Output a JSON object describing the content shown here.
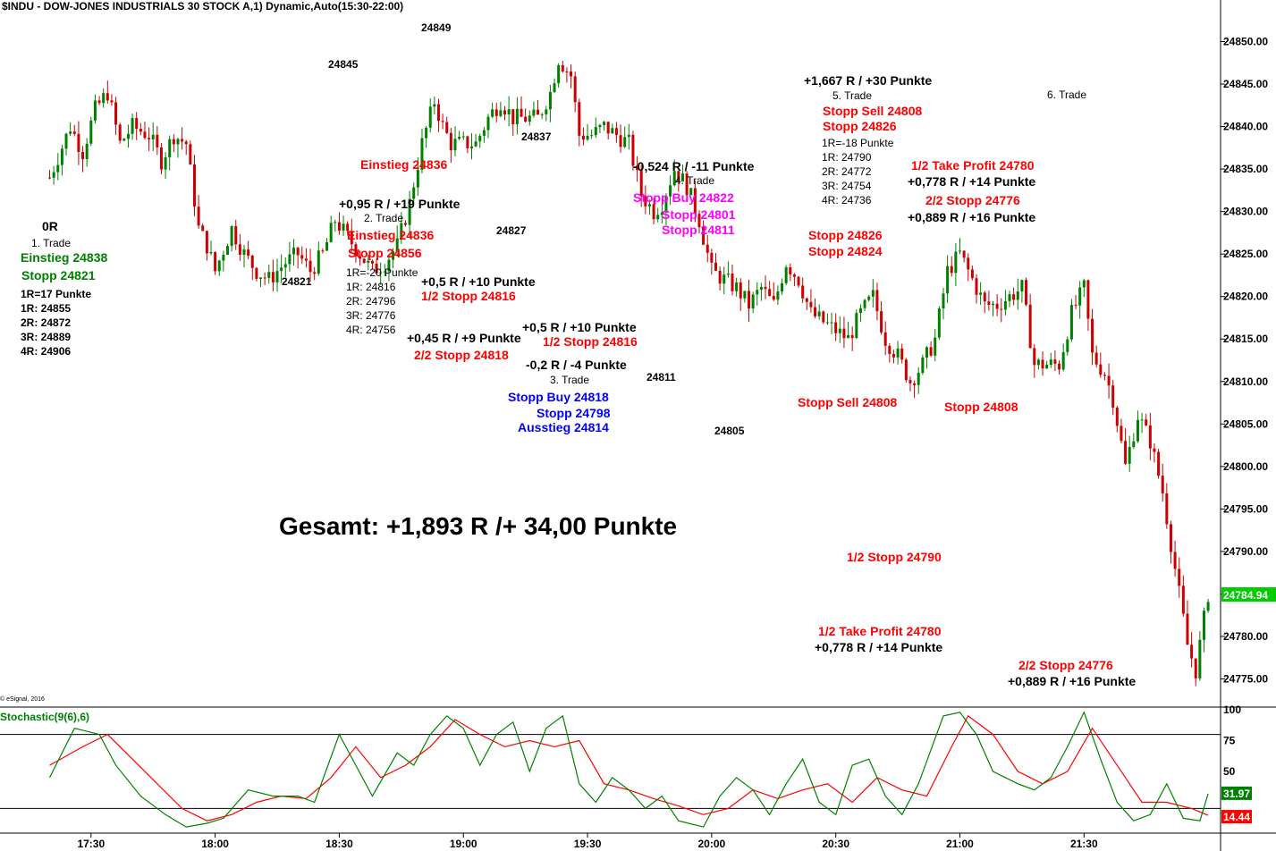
{
  "title": "$INDU - DOW-JONES INDUSTRIALS 30 STOCK A,1) Dynamic,Auto(15:30-22:00)",
  "copyright": "© eSignal, 2016",
  "stochastic_title": "Stochastic(9(6),6)",
  "total": "Gesamt: +1,893 R /+ 34,00 Punkte",
  "colors": {
    "up": "#008000",
    "down": "#cc0000",
    "k_line": "#008000",
    "d_line": "#ff0000",
    "green_ann": "#008000",
    "red_ann": "#ff0000",
    "magenta_ann": "#ff00ff",
    "blue_ann": "#0000ff",
    "last_price_bg": "#00cc00",
    "stoch_k_bg": "#008000",
    "stoch_d_bg": "#ff0000"
  },
  "annotations": {
    "pivot_24849": "24849",
    "pivot_24845": "24845",
    "pivot_24837": "24837",
    "pivot_24827": "24827",
    "pivot_24821": "24821",
    "pivot_24811": "24811",
    "pivot_24805": "24805",
    "t1_r": "0R",
    "t1_name": "1. Trade",
    "t1_entry": "Einstieg 24838",
    "t1_stop": "Stopp 24821",
    "t1_risk": "1R=17 Punkte",
    "t1_1r": "1R: 24855",
    "t1_2r": "2R: 24872",
    "t1_3r": "3R: 24889",
    "t1_4r": "4R: 24906",
    "t2_result": "+0,95 R / +19 Punkte",
    "t2_name": "2. Trade",
    "t2_entry": "Einstieg 24836",
    "t2_stop": "Stopp 24856",
    "t2_risk": "1R=-20 Punkte",
    "t2_1r": "1R: 24816",
    "t2_2r": "2R: 24796",
    "t2_3r": "3R: 24776",
    "t2_4r": "4R: 24756",
    "t2_entry_chart": "Einstieg 24836",
    "t2_half_result": "+0,5 R / +10 Punkte",
    "t2_half_stop": "1/2 Stopp 24816",
    "t2_rest_result": "+0,45 R / +9 Punkte",
    "t2_rest_stop": "2/2 Stopp 24818",
    "t3_half_result": "+0,5 R / +10 Punkte",
    "t3_half_stop": "1/2 Stopp 24816",
    "t3_result": "-0,2 R / -4 Punkte",
    "t3_name": "3. Trade",
    "t3_stop_buy": "Stopp Buy 24818",
    "t3_stop": "Stopp 24798",
    "t3_exit": "Ausstieg 24814",
    "t4_result": "-0,524 R / -11 Punkte",
    "t4_name": "4. Trade",
    "t4_stop_buy": "Stopp Buy 24822",
    "t4_stop1": "Stopp 24801",
    "t4_stop2": "Stopp 24811",
    "t5_result": "+1,667 R / +30 Punkte",
    "t5_name": "5. Trade",
    "t5_stop_sell": "Stopp Sell 24808",
    "t5_stop": "Stopp 24826",
    "t5_risk": "1R=-18 Punkte",
    "t5_1r": "1R: 24790",
    "t5_2r": "2R: 24772",
    "t5_3r": "3R: 24754",
    "t5_4r": "4R: 24736",
    "t6_name": "6. Trade",
    "t6_tp": "1/2 Take Profit 24780",
    "t6_tp_result": "+0,778 R / +14 Punkte",
    "t6_stop": "2/2 Stopp 24776",
    "t6_stop_result": "+0,889 R / +16 Punkte",
    "c_stop_24826": "Stopp 24826",
    "c_stop_24824": "Stopp 24824",
    "c_stop_sell": "Stopp Sell 24808",
    "c_stop_24808": "Stopp 24808",
    "c_half_stop": "1/2 Stopp 24790",
    "c_tp": "1/2 Take Profit 24780",
    "c_tp_result": "+0,778 R / +14 Punkte",
    "c_stop2": "2/2 Stopp 24776",
    "c_stop2_result": "+0,889 R / +16 Punkte"
  },
  "chart_data": [
    {
      "type": "candlestick",
      "title": "$INDU - DOW-JONES INDUSTRIALS 30 STOCK A,1) Dynamic,Auto(15:30-22:00)",
      "x_ticks": [
        "17:30",
        "18:00",
        "18:30",
        "19:00",
        "19:30",
        "20:00",
        "20:30",
        "21:00",
        "21:30"
      ],
      "y_ticks": [
        "24850.00",
        "24845.00",
        "24840.00",
        "24835.00",
        "24830.00",
        "24825.00",
        "24820.00",
        "24815.00",
        "24810.00",
        "24805.00",
        "24800.00",
        "24795.00",
        "24790.00",
        "24785.00",
        "24780.00",
        "24775.00"
      ],
      "ylim": [
        24772,
        24853
      ],
      "last_price": "24784.94",
      "grid": false,
      "path_points": [
        [
          "17:20",
          24834
        ],
        [
          "17:25",
          24840
        ],
        [
          "17:28",
          24837
        ],
        [
          "17:31",
          24842
        ],
        [
          "17:34",
          24844
        ],
        [
          "17:37",
          24838
        ],
        [
          "17:40",
          24840
        ],
        [
          "17:44",
          24839
        ],
        [
          "17:47",
          24836
        ],
        [
          "17:50",
          24839
        ],
        [
          "17:53",
          24838
        ],
        [
          "17:56",
          24828
        ],
        [
          "17:58",
          24826
        ],
        [
          "18:00",
          24823
        ],
        [
          "18:04",
          24828
        ],
        [
          "18:07",
          24825
        ],
        [
          "18:10",
          24823
        ],
        [
          "18:13",
          24822
        ],
        [
          "18:17",
          24824
        ],
        [
          "18:20",
          24825
        ],
        [
          "18:23",
          24823
        ],
        [
          "18:26",
          24825
        ],
        [
          "18:29",
          24829
        ],
        [
          "18:32",
          24827
        ],
        [
          "18:35",
          24825
        ],
        [
          "18:38",
          24823
        ],
        [
          "18:41",
          24824
        ],
        [
          "18:44",
          24826
        ],
        [
          "18:47",
          24831
        ],
        [
          "18:50",
          24838
        ],
        [
          "18:53",
          24843
        ],
        [
          "18:55",
          24840
        ],
        [
          "18:57",
          24838
        ],
        [
          "19:00",
          24838
        ],
        [
          "19:03",
          24838
        ],
        [
          "19:06",
          24841
        ],
        [
          "19:09",
          24843
        ],
        [
          "19:12",
          24841
        ],
        [
          "19:15",
          24841
        ],
        [
          "19:18",
          24841
        ],
        [
          "19:21",
          24844
        ],
        [
          "19:23",
          24848
        ],
        [
          "19:26",
          24846
        ],
        [
          "19:28",
          24839
        ],
        [
          "19:31",
          24839
        ],
        [
          "19:34",
          24840
        ],
        [
          "19:37",
          24839
        ],
        [
          "19:40",
          24838
        ],
        [
          "19:43",
          24832
        ],
        [
          "19:46",
          24830
        ],
        [
          "19:48",
          24831
        ],
        [
          "19:51",
          24835
        ],
        [
          "19:54",
          24833
        ],
        [
          "19:57",
          24829
        ],
        [
          "20:00",
          24823
        ],
        [
          "20:03",
          24822
        ],
        [
          "20:06",
          24821
        ],
        [
          "20:09",
          24819
        ],
        [
          "20:12",
          24821
        ],
        [
          "20:15",
          24819
        ],
        [
          "20:18",
          24824
        ],
        [
          "20:21",
          24822
        ],
        [
          "20:24",
          24818
        ],
        [
          "20:27",
          24817
        ],
        [
          "20:30",
          24816
        ],
        [
          "20:33",
          24815
        ],
        [
          "20:36",
          24818
        ],
        [
          "20:39",
          24820
        ],
        [
          "20:42",
          24815
        ],
        [
          "20:45",
          24813
        ],
        [
          "20:48",
          24810
        ],
        [
          "20:51",
          24812
        ],
        [
          "20:54",
          24815
        ],
        [
          "20:57",
          24823
        ],
        [
          "21:00",
          24825
        ],
        [
          "21:03",
          24822
        ],
        [
          "21:06",
          24819
        ],
        [
          "21:09",
          24819
        ],
        [
          "21:12",
          24820
        ],
        [
          "21:15",
          24821
        ],
        [
          "21:18",
          24812
        ],
        [
          "21:21",
          24812
        ],
        [
          "21:24",
          24812
        ],
        [
          "21:27",
          24818
        ],
        [
          "21:30",
          24821
        ],
        [
          "21:32",
          24813
        ],
        [
          "21:35",
          24811
        ],
        [
          "21:37",
          24808
        ],
        [
          "21:40",
          24800
        ],
        [
          "21:43",
          24806
        ],
        [
          "21:46",
          24803
        ],
        [
          "21:49",
          24797
        ],
        [
          "21:52",
          24788
        ],
        [
          "21:55",
          24779
        ],
        [
          "21:57",
          24776
        ],
        [
          "22:00",
          24785
        ]
      ]
    },
    {
      "type": "line",
      "title": "Stochastic(9(6),6)",
      "y_ticks": [
        "100",
        "75",
        "50"
      ],
      "ylim": [
        0,
        100
      ],
      "levels": [
        80,
        20
      ],
      "last_values": {
        "k": "31.97",
        "d": "14.44"
      },
      "k_path": [
        [
          "17:20",
          45
        ],
        [
          "17:26",
          85
        ],
        [
          "17:32",
          80
        ],
        [
          "17:36",
          55
        ],
        [
          "17:42",
          30
        ],
        [
          "17:48",
          15
        ],
        [
          "17:53",
          5
        ],
        [
          "17:58",
          8
        ],
        [
          "18:02",
          12
        ],
        [
          "18:08",
          35
        ],
        [
          "18:14",
          30
        ],
        [
          "18:20",
          30
        ],
        [
          "18:24",
          25
        ],
        [
          "18:30",
          80
        ],
        [
          "18:34",
          55
        ],
        [
          "18:38",
          30
        ],
        [
          "18:44",
          65
        ],
        [
          "18:48",
          55
        ],
        [
          "18:52",
          80
        ],
        [
          "18:56",
          95
        ],
        [
          "19:00",
          85
        ],
        [
          "19:04",
          55
        ],
        [
          "19:08",
          80
        ],
        [
          "19:12",
          90
        ],
        [
          "19:16",
          50
        ],
        [
          "19:20",
          85
        ],
        [
          "19:24",
          95
        ],
        [
          "19:28",
          40
        ],
        [
          "19:32",
          25
        ],
        [
          "19:36",
          45
        ],
        [
          "19:40",
          35
        ],
        [
          "19:44",
          20
        ],
        [
          "19:48",
          30
        ],
        [
          "19:52",
          10
        ],
        [
          "19:58",
          5
        ],
        [
          "20:02",
          30
        ],
        [
          "20:06",
          45
        ],
        [
          "20:10",
          35
        ],
        [
          "20:14",
          15
        ],
        [
          "20:18",
          40
        ],
        [
          "20:22",
          60
        ],
        [
          "20:26",
          25
        ],
        [
          "20:30",
          15
        ],
        [
          "20:34",
          55
        ],
        [
          "20:38",
          60
        ],
        [
          "20:42",
          30
        ],
        [
          "20:46",
          15
        ],
        [
          "20:50",
          40
        ],
        [
          "20:56",
          95
        ],
        [
          "21:00",
          98
        ],
        [
          "21:04",
          80
        ],
        [
          "21:08",
          50
        ],
        [
          "21:14",
          40
        ],
        [
          "21:18",
          35
        ],
        [
          "21:22",
          45
        ],
        [
          "21:26",
          70
        ],
        [
          "21:30",
          98
        ],
        [
          "21:34",
          60
        ],
        [
          "21:38",
          25
        ],
        [
          "21:42",
          10
        ],
        [
          "21:46",
          15
        ],
        [
          "21:50",
          40
        ],
        [
          "21:54",
          12
        ],
        [
          "21:58",
          10
        ],
        [
          "22:00",
          31.97
        ]
      ],
      "d_path": [
        [
          "17:20",
          55
        ],
        [
          "17:28",
          70
        ],
        [
          "17:34",
          80
        ],
        [
          "17:40",
          60
        ],
        [
          "17:46",
          40
        ],
        [
          "17:52",
          20
        ],
        [
          "17:58",
          10
        ],
        [
          "18:04",
          15
        ],
        [
          "18:10",
          25
        ],
        [
          "18:16",
          30
        ],
        [
          "18:22",
          28
        ],
        [
          "18:28",
          45
        ],
        [
          "18:34",
          70
        ],
        [
          "18:40",
          45
        ],
        [
          "18:46",
          55
        ],
        [
          "18:52",
          70
        ],
        [
          "18:58",
          92
        ],
        [
          "19:04",
          80
        ],
        [
          "19:10",
          70
        ],
        [
          "19:16",
          75
        ],
        [
          "19:22",
          70
        ],
        [
          "19:28",
          75
        ],
        [
          "19:34",
          40
        ],
        [
          "19:40",
          35
        ],
        [
          "19:46",
          28
        ],
        [
          "19:52",
          22
        ],
        [
          "19:58",
          15
        ],
        [
          "20:04",
          20
        ],
        [
          "20:10",
          35
        ],
        [
          "20:16",
          28
        ],
        [
          "20:22",
          35
        ],
        [
          "20:28",
          40
        ],
        [
          "20:34",
          25
        ],
        [
          "20:40",
          45
        ],
        [
          "20:46",
          35
        ],
        [
          "20:52",
          30
        ],
        [
          "20:58",
          70
        ],
        [
          "21:02",
          95
        ],
        [
          "21:08",
          80
        ],
        [
          "21:14",
          50
        ],
        [
          "21:20",
          40
        ],
        [
          "21:26",
          50
        ],
        [
          "21:32",
          85
        ],
        [
          "21:38",
          55
        ],
        [
          "21:44",
          25
        ],
        [
          "21:50",
          25
        ],
        [
          "21:56",
          20
        ],
        [
          "22:00",
          14.44
        ]
      ]
    }
  ]
}
